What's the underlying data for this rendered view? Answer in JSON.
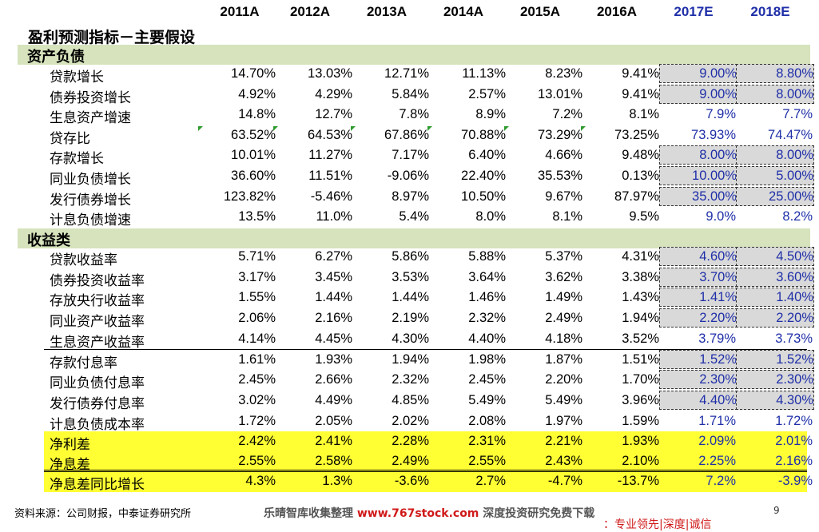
{
  "years": [
    "2011A",
    "2012A",
    "2013A",
    "2014A",
    "2015A",
    "2016A",
    "2017E",
    "2018E"
  ],
  "title": "盈利预测指标－主要假设",
  "sections": {
    "assets": "资产负债",
    "income": "收益类"
  },
  "rows_assets": [
    {
      "label": "贷款增长",
      "values": [
        "14.70%",
        "13.03%",
        "12.71%",
        "11.13%",
        "8.23%",
        "9.41%",
        "9.00%",
        "8.80%"
      ],
      "boxed": true
    },
    {
      "label": "债券投资增长",
      "values": [
        "4.92%",
        "4.29%",
        "5.84%",
        "2.57%",
        "13.01%",
        "9.41%",
        "9.00%",
        "8.00%"
      ],
      "boxed": true
    },
    {
      "label": "生息资产增速",
      "values": [
        "14.8%",
        "12.7%",
        "7.8%",
        "8.9%",
        "7.2%",
        "8.1%",
        "7.9%",
        "7.7%"
      ],
      "boxed": false
    },
    {
      "label": "贷存比",
      "values": [
        "63.52%",
        "64.53%",
        "67.86%",
        "70.88%",
        "73.29%",
        "73.25%",
        "73.93%",
        "74.47%"
      ],
      "boxed": false
    },
    {
      "label": "存款增长",
      "values": [
        "10.01%",
        "11.27%",
        "7.17%",
        "6.40%",
        "4.66%",
        "9.48%",
        "8.00%",
        "8.00%"
      ],
      "boxed": true
    },
    {
      "label": "同业负债增长",
      "values": [
        "36.60%",
        "11.51%",
        "-9.06%",
        "22.40%",
        "35.53%",
        "0.13%",
        "10.00%",
        "5.00%"
      ],
      "boxed": true
    },
    {
      "label": "发行债券增长",
      "values": [
        "123.82%",
        "-5.46%",
        "8.97%",
        "10.50%",
        "9.67%",
        "87.97%",
        "35.00%",
        "25.00%"
      ],
      "boxed": true
    },
    {
      "label": "计息负债增速",
      "values": [
        "13.5%",
        "11.0%",
        "5.4%",
        "8.0%",
        "8.1%",
        "9.5%",
        "9.0%",
        "8.2%"
      ],
      "boxed": false
    }
  ],
  "rows_income": [
    {
      "label": "贷款收益率",
      "values": [
        "5.71%",
        "6.27%",
        "5.86%",
        "5.88%",
        "5.37%",
        "4.31%",
        "4.60%",
        "4.50%"
      ],
      "boxed": true
    },
    {
      "label": "债券投资收益率",
      "values": [
        "3.17%",
        "3.45%",
        "3.53%",
        "3.64%",
        "3.62%",
        "3.38%",
        "3.70%",
        "3.60%"
      ],
      "boxed": true
    },
    {
      "label": "存放央行收益率",
      "values": [
        "1.55%",
        "1.44%",
        "1.44%",
        "1.46%",
        "1.49%",
        "1.43%",
        "1.41%",
        "1.40%"
      ],
      "boxed": true
    },
    {
      "label": "同业资产收益率",
      "values": [
        "2.06%",
        "2.16%",
        "2.19%",
        "2.32%",
        "2.49%",
        "1.94%",
        "2.20%",
        "2.20%"
      ],
      "boxed": true
    },
    {
      "label": "生息资产收益率",
      "values": [
        "4.14%",
        "4.45%",
        "4.30%",
        "4.40%",
        "4.18%",
        "3.52%",
        "3.79%",
        "3.73%"
      ],
      "boxed": false
    },
    {
      "label": "存款付息率",
      "values": [
        "1.61%",
        "1.93%",
        "1.94%",
        "1.98%",
        "1.87%",
        "1.51%",
        "1.52%",
        "1.52%"
      ],
      "boxed": true
    },
    {
      "label": "同业负债付息率",
      "values": [
        "2.45%",
        "2.66%",
        "2.32%",
        "2.45%",
        "2.20%",
        "1.70%",
        "2.30%",
        "2.30%"
      ],
      "boxed": true
    },
    {
      "label": "发行债券付息率",
      "values": [
        "3.02%",
        "4.49%",
        "4.85%",
        "5.49%",
        "5.49%",
        "3.96%",
        "4.40%",
        "4.30%"
      ],
      "boxed": true
    },
    {
      "label": "计息负债成本率",
      "values": [
        "1.72%",
        "2.05%",
        "2.02%",
        "2.08%",
        "1.97%",
        "1.59%",
        "1.71%",
        "1.72%"
      ],
      "boxed": false
    }
  ],
  "rows_highlight": [
    {
      "label": "净利差",
      "values": [
        "2.42%",
        "2.41%",
        "2.28%",
        "2.31%",
        "2.21%",
        "1.93%",
        "2.09%",
        "2.01%"
      ]
    },
    {
      "label": "净息差",
      "values": [
        "2.55%",
        "2.58%",
        "2.49%",
        "2.55%",
        "2.43%",
        "2.10%",
        "2.25%",
        "2.16%"
      ]
    },
    {
      "label": "净息差同比增长",
      "values": [
        "4.3%",
        "1.3%",
        "-3.6%",
        "2.7%",
        "-4.7%",
        "-13.7%",
        "7.2%",
        "-3.9%"
      ]
    }
  ],
  "footer": {
    "source": "资料来源：公司财报，中泰证券研究所",
    "watermark_pre": "乐晴智库收集整理 ",
    "watermark_url": "www.767stock.com",
    "watermark_post": " 深度投资研究免费下载",
    "page": "9",
    "cutoff_text": "：专业领先|深度|诚信"
  },
  "colors": {
    "estimate_text": "#1f2fa8",
    "section_bg": "#d6e3bc",
    "highlight_bg": "#ffff33",
    "box_bg": "#d9d9d9",
    "triangle": "#2e9c2e"
  }
}
